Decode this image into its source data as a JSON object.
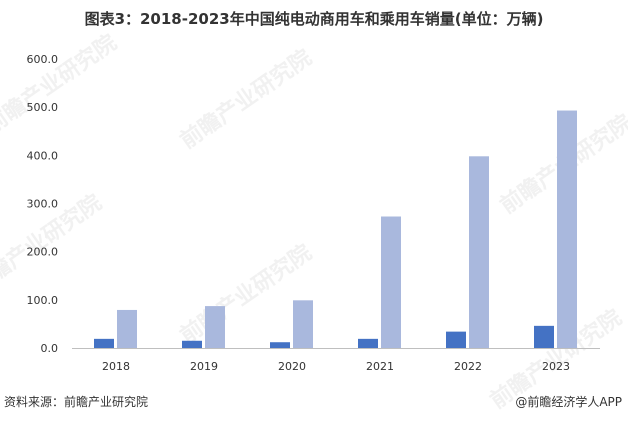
{
  "title": "图表3：2018-2023年中国纯电动商用车和乘用车销量(单位：万辆)",
  "source_label": "资料来源：前瞻产业研究院",
  "brand_label": "@前瞻经济学人APP",
  "watermark_text": "前瞻产业研究院",
  "colors": {
    "series1": "#4472c4",
    "series2": "#a9b8dd",
    "axis": "#bfbfbf"
  },
  "chart_data": {
    "type": "bar",
    "categories": [
      "2018",
      "2019",
      "2020",
      "2021",
      "2022",
      "2023"
    ],
    "series": [
      {
        "values": [
          19,
          15,
          12,
          19,
          34,
          46
        ]
      },
      {
        "values": [
          79,
          87,
          99,
          273,
          398,
          493
        ]
      }
    ],
    "ylim": [
      0,
      600
    ],
    "yticks": [
      "0.0",
      "100.0",
      "200.0",
      "300.0",
      "400.0",
      "500.0",
      "600.0"
    ],
    "grid": false,
    "title": "图表3：2018-2023年中国纯电动商用车和乘用车销量(单位：万辆)"
  }
}
